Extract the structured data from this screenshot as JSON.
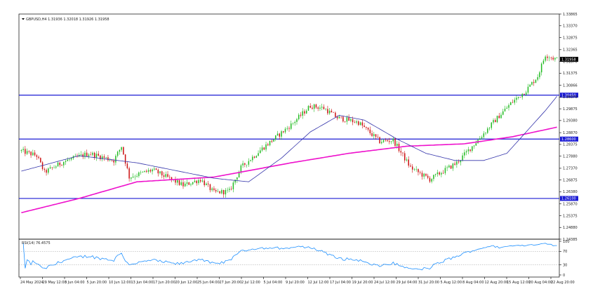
{
  "window": {
    "symbol_header": "GBPUSD,H4  1.31936 1.32018 1.31926 1.31958",
    "rsi_header": "RSI(14) 76.4575"
  },
  "colors": {
    "background": "#ffffff",
    "axis": "#000000",
    "candle_up": "#22bb22",
    "candle_down": "#cc1111",
    "ma_fast": "#3333aa",
    "ma_slow": "#ee11cc",
    "hline": "#1c1cd4",
    "rsi": "#1e90ff",
    "level_box": "#1c1cd4",
    "current_price_box": "#000000"
  },
  "price_axis": {
    "ticks": [
      "1.33865",
      "1.33370",
      "1.32875",
      "1.32365",
      "1.31870",
      "1.31375",
      "1.30866",
      "1.30370",
      "1.29875",
      "1.29380",
      "1.28870",
      "1.28375",
      "1.27880",
      "1.27370",
      "1.26875",
      "1.26380",
      "1.25870",
      "1.25375",
      "1.24880",
      "1.24385"
    ],
    "current_price": "1.31958"
  },
  "levels": [
    {
      "label": "1.30450"
    },
    {
      "label": "1.28600"
    },
    {
      "label": "1.26100"
    }
  ],
  "rsi_axis": {
    "ticks": [
      "100",
      "70",
      "30",
      "0"
    ]
  },
  "time_axis": {
    "labels": [
      "24 May 2024",
      "29 May 12:00",
      "3 Jun 04:00",
      "5 Jun 20:00",
      "10 Jun 12:00",
      "13 Jun 04:00",
      "17 Jun 20:00",
      "20 Jun 12:00",
      "25 Jun 04:00",
      "27 Jun 20:00",
      "2 Jul 12:00",
      "5 Jul 04:00",
      "9 Jul 20:00",
      "12 Jul 12:00",
      "17 Jul 04:00",
      "19 Jul 20:00",
      "24 Jul 12:00",
      "29 Jul 04:00",
      "31 Jul 20:00",
      "5 Aug 12:00",
      "8 Aug 04:00",
      "12 Aug 20:00",
      "15 Aug 12:00",
      "20 Aug 04:00",
      "22 Aug 20:00"
    ]
  },
  "chart_data": {
    "type": "candlestick",
    "symbol": "GBPUSD",
    "timeframe": "H4",
    "ylim": [
      1.24385,
      1.33865
    ],
    "anchors": [
      {
        "x": 0,
        "y": 1.281
      },
      {
        "x": 8,
        "y": 1.279
      },
      {
        "x": 12,
        "y": 1.272
      },
      {
        "x": 22,
        "y": 1.2765
      },
      {
        "x": 35,
        "y": 1.28
      },
      {
        "x": 48,
        "y": 1.277
      },
      {
        "x": 52,
        "y": 1.283
      },
      {
        "x": 56,
        "y": 1.27
      },
      {
        "x": 68,
        "y": 1.273
      },
      {
        "x": 84,
        "y": 1.2665
      },
      {
        "x": 93,
        "y": 1.269
      },
      {
        "x": 100,
        "y": 1.2635
      },
      {
        "x": 108,
        "y": 1.264
      },
      {
        "x": 114,
        "y": 1.274
      },
      {
        "x": 125,
        "y": 1.282
      },
      {
        "x": 140,
        "y": 1.292
      },
      {
        "x": 150,
        "y": 1.3
      },
      {
        "x": 157,
        "y": 1.299
      },
      {
        "x": 164,
        "y": 1.295
      },
      {
        "x": 175,
        "y": 1.293
      },
      {
        "x": 186,
        "y": 1.285
      },
      {
        "x": 193,
        "y": 1.2855
      },
      {
        "x": 202,
        "y": 1.274
      },
      {
        "x": 212,
        "y": 1.269
      },
      {
        "x": 226,
        "y": 1.276
      },
      {
        "x": 238,
        "y": 1.2865
      },
      {
        "x": 246,
        "y": 1.294
      },
      {
        "x": 254,
        "y": 1.301
      },
      {
        "x": 262,
        "y": 1.3065
      },
      {
        "x": 268,
        "y": 1.3125
      },
      {
        "x": 272,
        "y": 1.3215
      },
      {
        "x": 278,
        "y": 1.3195
      }
    ],
    "ma_fast": [
      {
        "x": 0,
        "y": 1.2725
      },
      {
        "x": 30,
        "y": 1.279
      },
      {
        "x": 60,
        "y": 1.276
      },
      {
        "x": 100,
        "y": 1.2695
      },
      {
        "x": 118,
        "y": 1.268
      },
      {
        "x": 135,
        "y": 1.278
      },
      {
        "x": 150,
        "y": 1.289
      },
      {
        "x": 165,
        "y": 1.296
      },
      {
        "x": 178,
        "y": 1.294
      },
      {
        "x": 195,
        "y": 1.286
      },
      {
        "x": 210,
        "y": 1.28
      },
      {
        "x": 225,
        "y": 1.277
      },
      {
        "x": 240,
        "y": 1.277
      },
      {
        "x": 252,
        "y": 1.28
      },
      {
        "x": 262,
        "y": 1.289
      },
      {
        "x": 272,
        "y": 1.298
      },
      {
        "x": 278,
        "y": 1.304
      }
    ],
    "ma_slow": [
      {
        "x": 0,
        "y": 1.255
      },
      {
        "x": 30,
        "y": 1.261
      },
      {
        "x": 60,
        "y": 1.268
      },
      {
        "x": 100,
        "y": 1.27
      },
      {
        "x": 140,
        "y": 1.276
      },
      {
        "x": 170,
        "y": 1.28
      },
      {
        "x": 200,
        "y": 1.283
      },
      {
        "x": 230,
        "y": 1.284
      },
      {
        "x": 255,
        "y": 1.287
      },
      {
        "x": 278,
        "y": 1.291
      }
    ],
    "hlines": [
      1.3045,
      1.286,
      1.261
    ],
    "current_price": 1.31958,
    "rsi": {
      "period": 14,
      "value": 76.4575,
      "ylim": [
        0,
        100
      ],
      "levels": [
        70,
        30
      ]
    }
  }
}
